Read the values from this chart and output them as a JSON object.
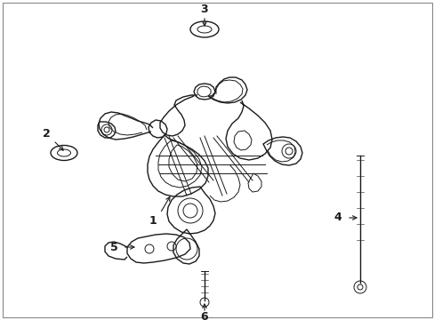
{
  "background_color": "#ffffff",
  "line_color": "#1a1a1a",
  "label_color": "#000000",
  "figsize": [
    4.89,
    3.6
  ],
  "dpi": 100,
  "border_color": "#cccccc"
}
